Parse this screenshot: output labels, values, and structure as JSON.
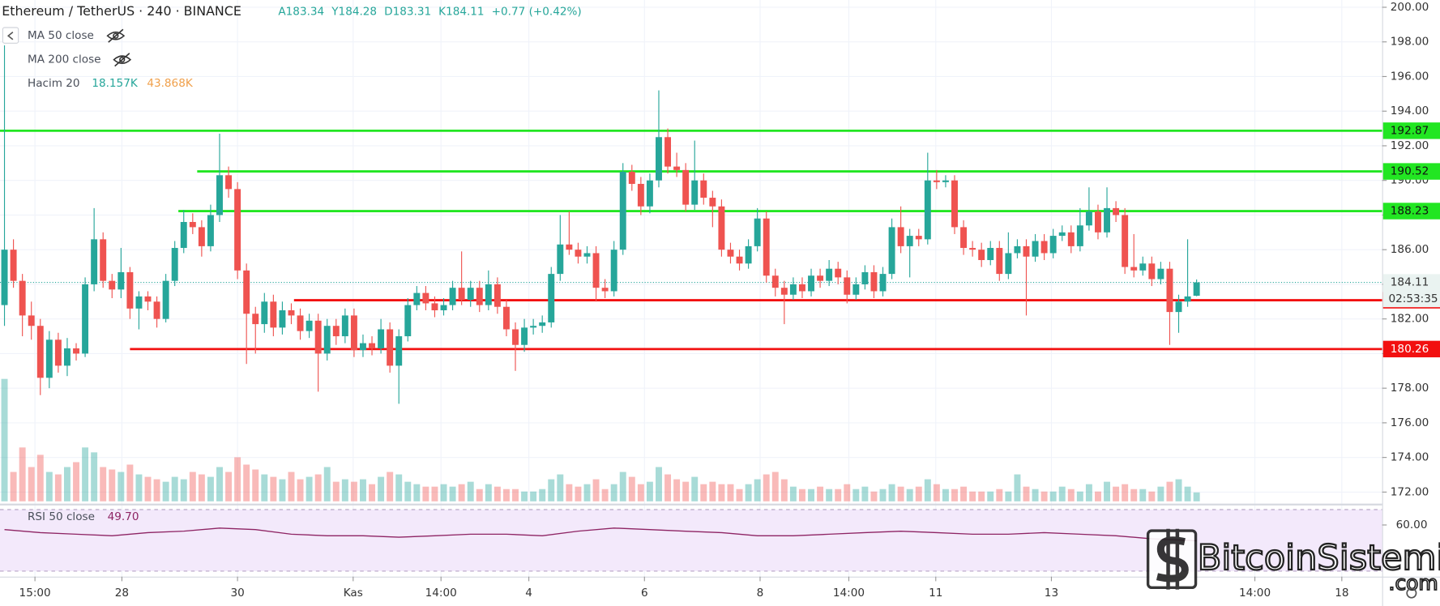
{
  "chart_data": {
    "type": "candlestick",
    "title": "Ethereum / TetherUS · 240 · BINANCE",
    "ohlc_legend": [
      "A183.34",
      "Y184.28",
      "D183.31",
      "K184.11",
      "+0.77 (+0.42%)"
    ],
    "legend": [
      "MA 50 close",
      "MA 200 close"
    ],
    "volume_legend": {
      "name": "Hacim 20",
      "value": "18.157K",
      "ma": "43.868K"
    },
    "up_color": "#26a69a",
    "down_color": "#ef5350",
    "xlim": [
      -0.5,
      153.7
    ],
    "ylim": [
      171.36,
      200.42
    ],
    "vlim": [
      0,
      300
    ],
    "grid": true,
    "xticks": [
      {
        "value": 3.4,
        "label": "15:00"
      },
      {
        "value": 13.1,
        "label": "28"
      },
      {
        "value": 26.0,
        "label": "30"
      },
      {
        "value": 38.9,
        "label": "Kas"
      },
      {
        "value": 48.7,
        "label": "14:00"
      },
      {
        "value": 58.5,
        "label": "4"
      },
      {
        "value": 71.4,
        "label": "6"
      },
      {
        "value": 84.3,
        "label": "8"
      },
      {
        "value": 94.2,
        "label": "14:00"
      },
      {
        "value": 103.9,
        "label": "11"
      },
      {
        "value": 116.8,
        "label": "13"
      },
      {
        "value": 139.5,
        "label": "14:00"
      },
      {
        "value": 149.2,
        "label": "18"
      }
    ],
    "yticks": [
      {
        "value": 172,
        "label": "172.00"
      },
      {
        "value": 174,
        "label": "174.00"
      },
      {
        "value": 176,
        "label": "176.00"
      },
      {
        "value": 178,
        "label": "178.00"
      },
      {
        "value": 180,
        "label": "180.00"
      },
      {
        "value": 182,
        "label": "182.00"
      },
      {
        "value": 184,
        "label": "184.00"
      },
      {
        "value": 186,
        "label": "186.00"
      },
      {
        "value": 188,
        "label": "188.00"
      },
      {
        "value": 190,
        "label": "190.00"
      },
      {
        "value": 192,
        "label": "192.00"
      },
      {
        "value": 194,
        "label": "194.00"
      },
      {
        "value": 196,
        "label": "196.00"
      },
      {
        "value": 198,
        "label": "198.00"
      },
      {
        "value": 200,
        "label": "200.00"
      }
    ],
    "hlines": [
      {
        "value": 192.87,
        "start": -0.5,
        "color": "#22e622",
        "text_color": "#111"
      },
      {
        "value": 190.52,
        "start": 21.5,
        "color": "#22e622",
        "text_color": "#111"
      },
      {
        "value": 188.23,
        "start": 19.4,
        "color": "#22e622",
        "text_color": "#111"
      },
      {
        "value": 183.08,
        "start": 32.3,
        "color": "#f21010",
        "text_color": "#fff"
      },
      {
        "value": 180.26,
        "start": 14.0,
        "color": "#f21010",
        "text_color": "#fff"
      }
    ],
    "last_price": 184.11,
    "countdown": "02:53:35",
    "candles": [
      [
        182.8,
        197.8,
        181.6,
        186.0
      ],
      [
        186.0,
        186.6,
        183.8,
        184.2
      ],
      [
        184.2,
        184.6,
        181.0,
        182.2
      ],
      [
        182.2,
        183.0,
        180.8,
        181.6
      ],
      [
        181.6,
        182.0,
        177.6,
        178.6
      ],
      [
        178.6,
        181.3,
        178.0,
        180.8
      ],
      [
        180.8,
        181.2,
        178.9,
        179.3
      ],
      [
        179.3,
        180.9,
        178.7,
        180.3
      ],
      [
        180.3,
        180.6,
        179.6,
        180.0
      ],
      [
        180.0,
        184.4,
        179.8,
        184.0
      ],
      [
        184.0,
        188.4,
        183.6,
        186.6
      ],
      [
        186.6,
        187.0,
        183.8,
        184.2
      ],
      [
        184.2,
        184.6,
        183.2,
        183.7
      ],
      [
        183.7,
        186.1,
        183.2,
        184.7
      ],
      [
        184.7,
        185.0,
        182.0,
        182.6
      ],
      [
        182.6,
        183.6,
        181.4,
        183.3
      ],
      [
        183.3,
        183.6,
        182.5,
        183.0
      ],
      [
        183.0,
        183.3,
        181.5,
        182.0
      ],
      [
        182.0,
        184.6,
        181.8,
        184.2
      ],
      [
        184.2,
        186.5,
        183.9,
        186.1
      ],
      [
        186.1,
        188.3,
        185.8,
        187.6
      ],
      [
        187.6,
        188.1,
        186.9,
        187.3
      ],
      [
        187.3,
        187.7,
        185.6,
        186.2
      ],
      [
        186.2,
        188.6,
        185.9,
        188.0
      ],
      [
        188.0,
        192.7,
        187.6,
        190.3
      ],
      [
        190.3,
        190.8,
        189.0,
        189.5
      ],
      [
        189.5,
        189.9,
        184.3,
        184.8
      ],
      [
        184.8,
        185.2,
        179.4,
        182.3
      ],
      [
        182.3,
        182.7,
        180.0,
        181.7
      ],
      [
        181.7,
        183.5,
        181.2,
        183.0
      ],
      [
        183.0,
        183.4,
        181.0,
        181.5
      ],
      [
        181.5,
        183.0,
        181.1,
        182.5
      ],
      [
        182.5,
        182.9,
        181.7,
        182.2
      ],
      [
        182.2,
        182.6,
        180.8,
        181.3
      ],
      [
        181.3,
        182.3,
        180.9,
        181.9
      ],
      [
        181.9,
        182.3,
        177.8,
        180.0
      ],
      [
        180.0,
        182.0,
        179.6,
        181.6
      ],
      [
        181.6,
        182.0,
        180.5,
        181.0
      ],
      [
        181.0,
        182.6,
        180.6,
        182.2
      ],
      [
        182.2,
        182.6,
        179.8,
        180.2
      ],
      [
        180.2,
        181.1,
        179.8,
        180.6
      ],
      [
        180.6,
        181.0,
        179.9,
        180.3
      ],
      [
        180.3,
        182.0,
        180.0,
        181.4
      ],
      [
        181.4,
        181.8,
        178.9,
        179.3
      ],
      [
        179.3,
        181.4,
        177.1,
        181.0
      ],
      [
        181.0,
        183.2,
        180.7,
        182.8
      ],
      [
        182.8,
        183.9,
        182.5,
        183.5
      ],
      [
        183.5,
        183.9,
        182.5,
        182.9
      ],
      [
        182.9,
        183.3,
        182.1,
        182.5
      ],
      [
        182.5,
        183.2,
        182.2,
        182.8
      ],
      [
        182.8,
        184.2,
        182.5,
        183.8
      ],
      [
        183.8,
        185.9,
        182.8,
        183.1
      ],
      [
        183.1,
        184.2,
        182.7,
        183.8
      ],
      [
        183.8,
        184.2,
        182.4,
        182.8
      ],
      [
        182.8,
        184.8,
        182.5,
        184.0
      ],
      [
        184.0,
        184.4,
        182.3,
        182.7
      ],
      [
        182.7,
        183.1,
        181.0,
        181.4
      ],
      [
        181.4,
        181.8,
        179.0,
        180.5
      ],
      [
        180.5,
        182.0,
        180.1,
        181.5
      ],
      [
        181.5,
        182.0,
        181.1,
        181.6
      ],
      [
        181.6,
        182.2,
        181.2,
        181.8
      ],
      [
        181.8,
        185.0,
        181.5,
        184.6
      ],
      [
        184.6,
        188.0,
        184.2,
        186.3
      ],
      [
        186.3,
        188.2,
        185.7,
        186.0
      ],
      [
        186.0,
        186.4,
        185.2,
        185.6
      ],
      [
        185.6,
        186.2,
        185.2,
        185.8
      ],
      [
        185.8,
        186.2,
        183.0,
        183.8
      ],
      [
        183.8,
        184.3,
        183.2,
        183.6
      ],
      [
        183.6,
        186.5,
        183.3,
        186.0
      ],
      [
        186.0,
        191.0,
        185.7,
        190.5
      ],
      [
        190.5,
        190.9,
        189.4,
        189.8
      ],
      [
        189.8,
        190.2,
        188.0,
        188.5
      ],
      [
        188.5,
        190.4,
        188.1,
        190.0
      ],
      [
        190.0,
        195.2,
        189.6,
        192.5
      ],
      [
        192.5,
        193.0,
        190.4,
        190.8
      ],
      [
        190.8,
        191.6,
        190.2,
        190.6
      ],
      [
        190.6,
        191.0,
        188.2,
        188.6
      ],
      [
        188.6,
        192.3,
        188.3,
        190.0
      ],
      [
        190.0,
        190.4,
        188.6,
        189.0
      ],
      [
        189.0,
        189.4,
        187.3,
        188.5
      ],
      [
        188.5,
        188.9,
        185.6,
        186.0
      ],
      [
        186.0,
        186.4,
        185.2,
        185.6
      ],
      [
        185.6,
        186.0,
        184.8,
        185.2
      ],
      [
        185.2,
        186.6,
        184.9,
        186.2
      ],
      [
        186.2,
        188.4,
        185.9,
        187.8
      ],
      [
        187.8,
        188.2,
        184.1,
        184.5
      ],
      [
        184.5,
        184.9,
        183.3,
        183.8
      ],
      [
        183.8,
        184.2,
        181.7,
        183.4
      ],
      [
        183.4,
        184.4,
        183.1,
        184.0
      ],
      [
        184.0,
        184.4,
        183.2,
        183.6
      ],
      [
        183.6,
        184.9,
        183.3,
        184.5
      ],
      [
        184.5,
        184.9,
        183.8,
        184.2
      ],
      [
        184.2,
        185.4,
        183.9,
        184.9
      ],
      [
        184.9,
        185.3,
        184.0,
        184.4
      ],
      [
        184.4,
        184.8,
        182.9,
        183.4
      ],
      [
        183.4,
        184.4,
        183.1,
        184.0
      ],
      [
        184.0,
        185.1,
        183.7,
        184.7
      ],
      [
        184.7,
        185.1,
        183.2,
        183.6
      ],
      [
        183.6,
        185.0,
        183.3,
        184.6
      ],
      [
        184.6,
        187.8,
        184.3,
        187.3
      ],
      [
        187.3,
        188.5,
        185.8,
        186.2
      ],
      [
        186.2,
        187.2,
        184.4,
        186.8
      ],
      [
        186.8,
        187.2,
        186.2,
        186.6
      ],
      [
        186.6,
        191.6,
        186.3,
        190.0
      ],
      [
        190.0,
        190.6,
        189.5,
        189.9
      ],
      [
        189.9,
        190.3,
        189.6,
        190.0
      ],
      [
        190.0,
        190.3,
        186.9,
        187.3
      ],
      [
        187.3,
        187.7,
        185.7,
        186.1
      ],
      [
        186.1,
        186.5,
        185.6,
        186.0
      ],
      [
        186.0,
        186.4,
        185.0,
        185.4
      ],
      [
        185.4,
        186.5,
        185.1,
        186.1
      ],
      [
        186.1,
        186.5,
        184.2,
        184.6
      ],
      [
        184.6,
        187.0,
        184.3,
        185.8
      ],
      [
        185.8,
        186.6,
        185.5,
        186.2
      ],
      [
        186.2,
        186.6,
        182.2,
        185.6
      ],
      [
        185.6,
        186.9,
        185.3,
        186.5
      ],
      [
        186.5,
        186.9,
        185.4,
        185.8
      ],
      [
        185.8,
        187.2,
        185.5,
        186.8
      ],
      [
        186.8,
        187.4,
        186.5,
        187.0
      ],
      [
        187.0,
        187.4,
        185.8,
        186.2
      ],
      [
        186.2,
        188.4,
        185.9,
        187.4
      ],
      [
        187.4,
        189.6,
        187.1,
        188.2
      ],
      [
        188.2,
        188.6,
        186.6,
        187.0
      ],
      [
        187.0,
        189.6,
        186.7,
        188.4
      ],
      [
        188.4,
        188.8,
        187.6,
        188.0
      ],
      [
        188.0,
        188.4,
        184.6,
        185.0
      ],
      [
        185.0,
        186.9,
        184.4,
        184.8
      ],
      [
        184.8,
        185.6,
        184.5,
        185.2
      ],
      [
        185.2,
        185.6,
        183.9,
        184.3
      ],
      [
        184.3,
        185.3,
        184.0,
        184.9
      ],
      [
        184.9,
        185.3,
        180.5,
        182.4
      ],
      [
        182.4,
        183.4,
        181.2,
        183.0
      ],
      [
        183.0,
        186.6,
        182.7,
        183.3
      ],
      [
        183.34,
        184.28,
        183.31,
        184.11
      ]
    ],
    "volume": [
      250,
      60,
      110,
      70,
      95,
      60,
      55,
      70,
      80,
      110,
      100,
      70,
      65,
      60,
      75,
      55,
      50,
      45,
      40,
      50,
      45,
      60,
      55,
      50,
      70,
      60,
      90,
      75,
      65,
      55,
      50,
      45,
      60,
      45,
      50,
      55,
      70,
      40,
      45,
      40,
      45,
      35,
      50,
      60,
      55,
      40,
      35,
      30,
      30,
      35,
      30,
      35,
      40,
      25,
      35,
      30,
      25,
      25,
      20,
      20,
      25,
      45,
      55,
      35,
      30,
      35,
      45,
      25,
      35,
      60,
      50,
      35,
      40,
      70,
      55,
      45,
      40,
      50,
      35,
      40,
      35,
      35,
      25,
      35,
      45,
      55,
      60,
      45,
      30,
      25,
      25,
      30,
      25,
      25,
      35,
      25,
      30,
      20,
      25,
      35,
      30,
      25,
      30,
      45,
      35,
      25,
      25,
      30,
      20,
      20,
      20,
      25,
      20,
      55,
      30,
      25,
      20,
      20,
      30,
      25,
      20,
      35,
      20,
      40,
      30,
      35,
      25,
      25,
      20,
      30,
      40,
      45,
      30,
      18.157
    ],
    "rsi": {
      "name": "RSI 50 close",
      "value_label": "49.70",
      "color": "#8e2464",
      "ylim": [
        30,
        70
      ],
      "band": [
        30,
        70
      ],
      "yticks": [
        {
          "value": 60,
          "label": "60.00"
        }
      ],
      "x": [
        0,
        4,
        8,
        12,
        16,
        20,
        24,
        28,
        32,
        36,
        40,
        44,
        48,
        52,
        56,
        60,
        64,
        68,
        72,
        76,
        80,
        84,
        88,
        92,
        96,
        100,
        104,
        108,
        112,
        116,
        120,
        124,
        128,
        132,
        133
      ],
      "values": [
        57,
        55,
        54,
        53,
        55,
        56,
        58,
        57,
        54,
        53,
        53,
        52,
        53,
        54,
        54,
        53,
        56,
        58,
        57,
        56,
        55,
        53,
        53,
        54,
        55,
        56,
        55,
        54,
        54,
        55,
        54,
        53,
        51,
        50,
        49.7
      ]
    },
    "watermark": {
      "name": "BitcoinSistemi",
      "suffix": ".com"
    }
  }
}
